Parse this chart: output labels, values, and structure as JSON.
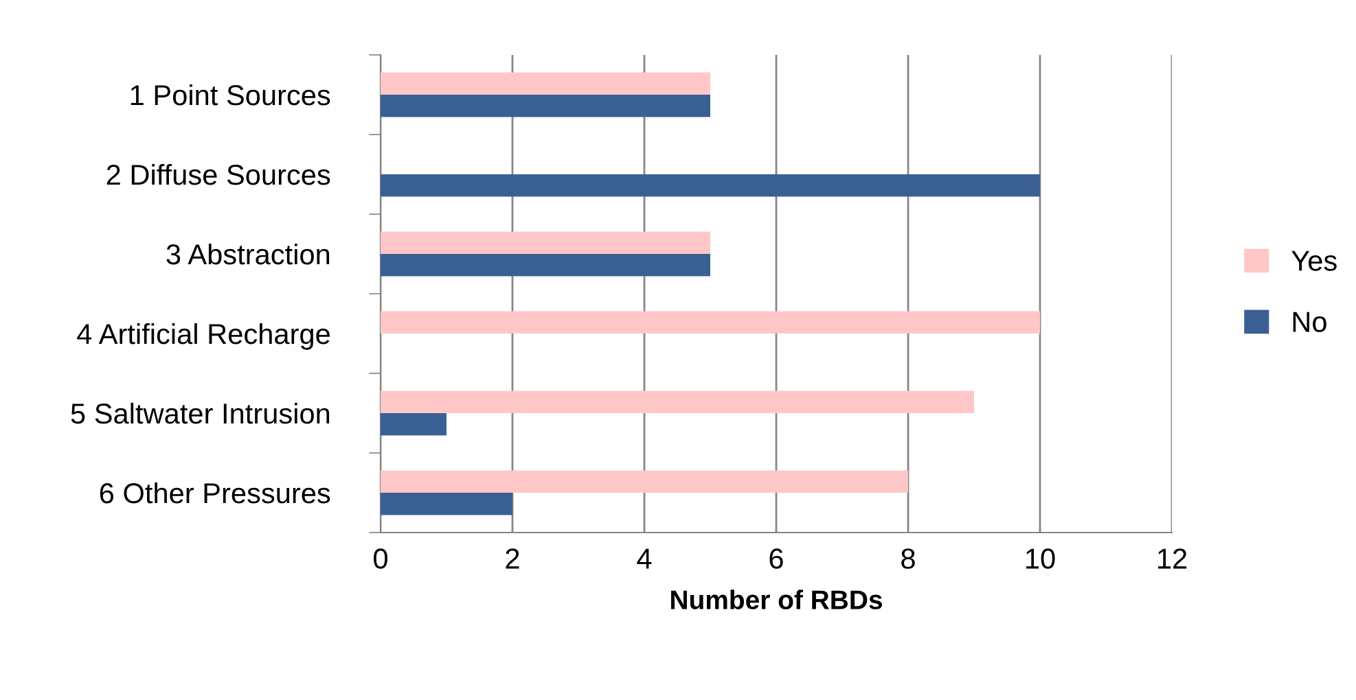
{
  "chart_data": {
    "type": "bar",
    "orientation": "horizontal",
    "xlabel": "Number of RBDs",
    "categories": [
      "1 Point Sources",
      "2 Diffuse Sources",
      "3 Abstraction",
      "4 Artificial Recharge",
      "5 Saltwater Intrusion",
      "6 Other Pressures"
    ],
    "series": [
      {
        "name": "Yes",
        "color": "#ffc7c7",
        "values": [
          5,
          0,
          5,
          10,
          9,
          8
        ]
      },
      {
        "name": "No",
        "color": "#3a6093",
        "values": [
          5,
          10,
          5,
          0,
          1,
          2
        ]
      }
    ],
    "xlim": [
      0,
      12
    ],
    "xticks": [
      0,
      2,
      4,
      6,
      8,
      10,
      12
    ],
    "grid": "x",
    "legend": "right"
  }
}
